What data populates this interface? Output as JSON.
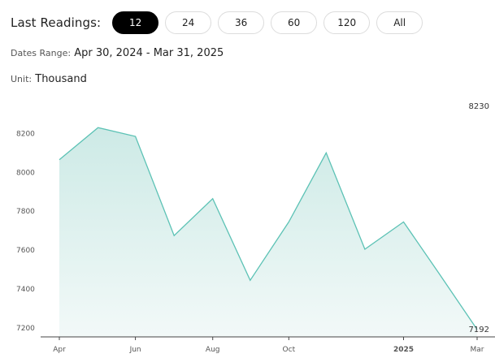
{
  "toolbar": {
    "label": "Last Readings:",
    "options": [
      "12",
      "24",
      "36",
      "60",
      "120",
      "All"
    ],
    "selected": "12"
  },
  "dates_range": {
    "label": "Dates Range:",
    "value": "Apr 30, 2024 - Mar 31, 2025"
  },
  "unit": {
    "label": "Unit:",
    "value": "Thousand"
  },
  "colors": {
    "line": "#5cc2b5",
    "fill_top": "#cdeae6",
    "fill_bottom": "#f2f9f8",
    "active_pill": "#000000"
  },
  "chart_data": {
    "type": "area",
    "x": [
      "2024-04-30",
      "2024-05-31",
      "2024-06-30",
      "2024-07-31",
      "2024-08-31",
      "2024-09-30",
      "2024-10-31",
      "2024-11-30",
      "2024-12-31",
      "2025-01-31",
      "2025-02-28",
      "2025-03-31"
    ],
    "values": [
      8065,
      8230,
      8185,
      7675,
      7865,
      7445,
      7745,
      8100,
      7605,
      7745,
      7485,
      7192
    ],
    "x_ticks": [
      {
        "label": "Apr",
        "date": "2024-04-30"
      },
      {
        "label": "Jun",
        "date": "2024-06-30"
      },
      {
        "label": "Aug",
        "date": "2024-08-31"
      },
      {
        "label": "Oct",
        "date": "2024-10-31"
      },
      {
        "label": "2025",
        "date": "2025-01-31"
      },
      {
        "label": "Mar",
        "date": "2025-03-31"
      }
    ],
    "y_ticks": [
      7200,
      7400,
      7600,
      7800,
      8000,
      8200
    ],
    "ylim": [
      7125,
      8285
    ],
    "max_label": "8230",
    "min_label": "7192",
    "grid": false
  }
}
